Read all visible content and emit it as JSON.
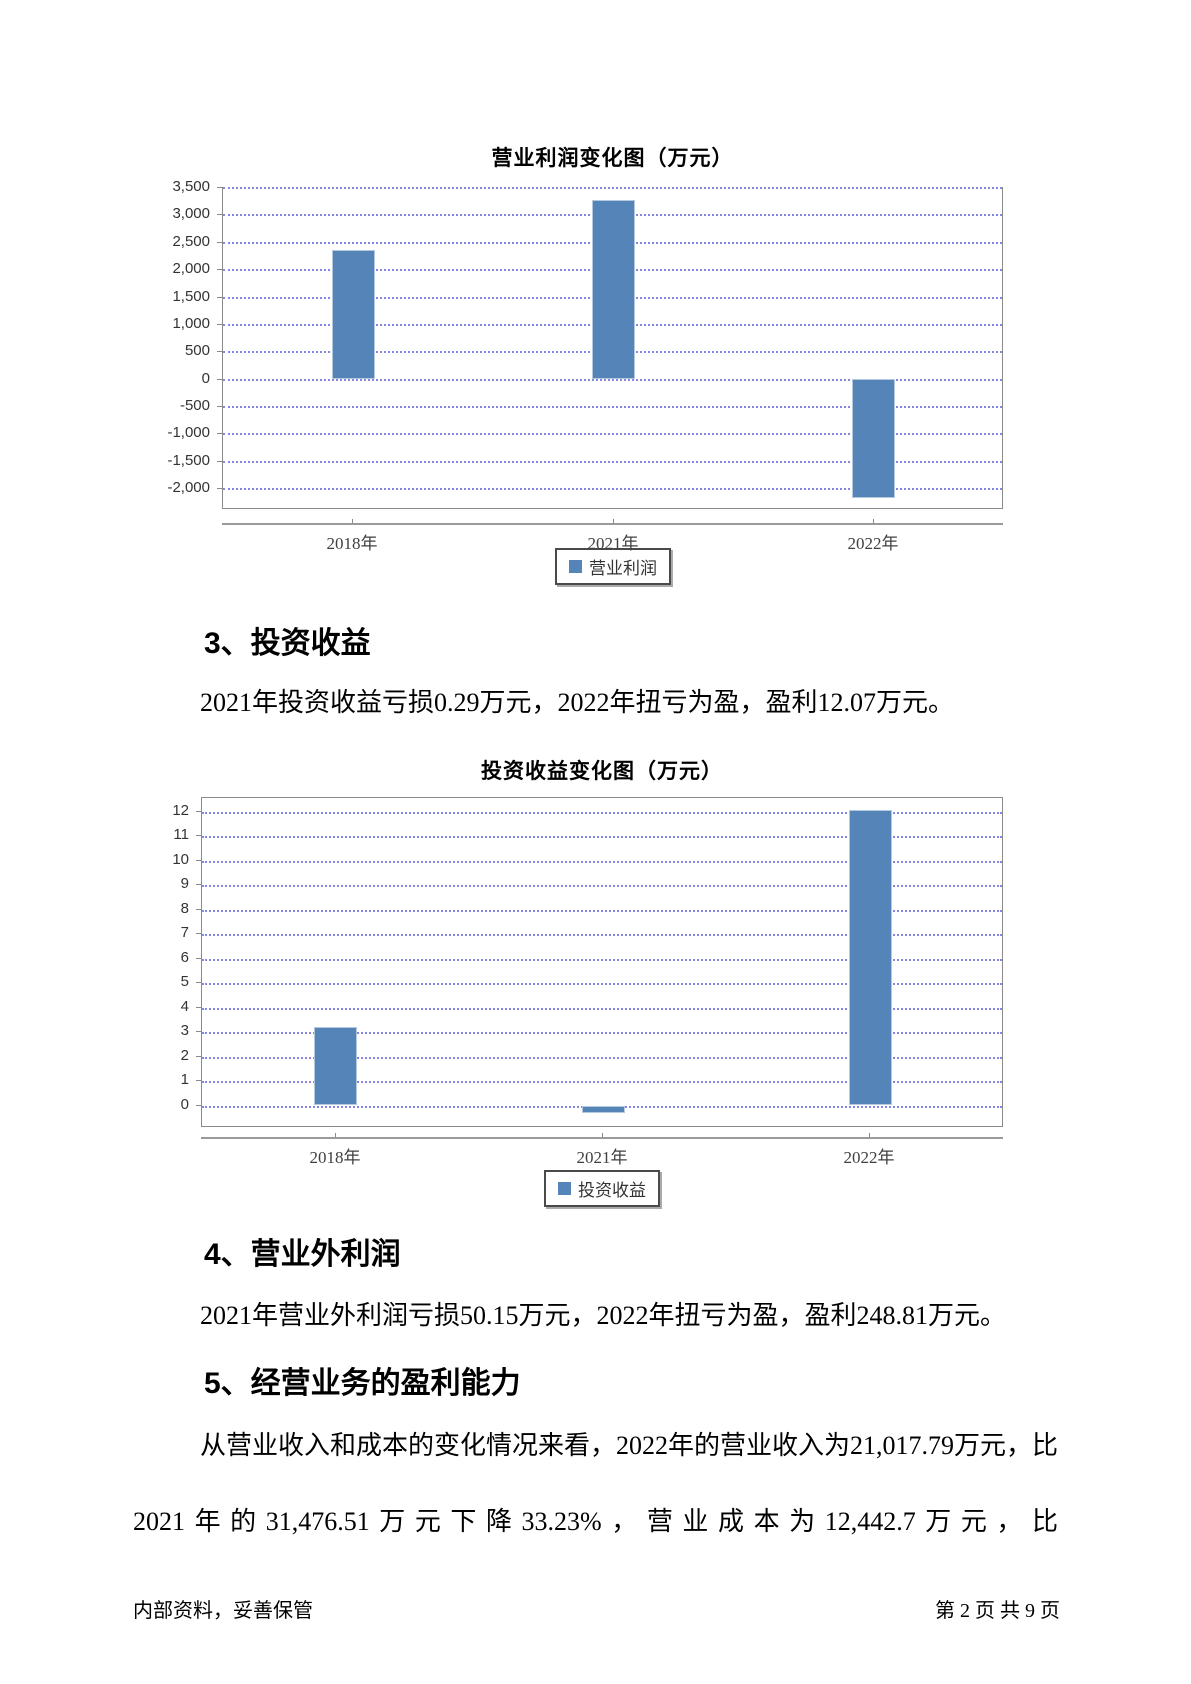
{
  "sections": [
    {
      "heading": "3、投资收益",
      "paragraph": "2021年投资收益亏损0.29万元，2022年扭亏为盈，盈利12.07万元。"
    },
    {
      "heading": "4、营业外利润",
      "paragraph": "2021年营业外利润亏损50.15万元，2022年扭亏为盈，盈利248.81万元。"
    },
    {
      "heading": "5、经营业务的盈利能力",
      "paragraph": "从营业收入和成本的变化情况来看，2022年的营业收入为21,017.79万元，比2021年的31,476.51万元下降33.23%，营业成本为12,442.7万元，比"
    }
  ],
  "footer": {
    "left": "内部资料，妥善保管",
    "right": "第 2 页  共 9 页"
  },
  "chart_data": [
    {
      "type": "bar",
      "title": "营业利润变化图（万元）",
      "legend": "营业利润",
      "legend_position": "bottom",
      "grid": "horizontal-dotted",
      "categories": [
        "2018年",
        "2021年",
        "2022年"
      ],
      "values": [
        2350,
        3260,
        -2180
      ],
      "ylim": [
        -2380,
        3500
      ],
      "yticks": [
        3500,
        3000,
        2500,
        2000,
        1500,
        1000,
        500,
        0,
        -500,
        -1000,
        -1500,
        -2000
      ],
      "ytick_labels": [
        "3,500",
        "3,000",
        "2,500",
        "2,000",
        "1,500",
        "1,000",
        "500",
        "0",
        "-500",
        "-1,000",
        "-1,500",
        "-2,000"
      ],
      "bar_color": "#5585b8",
      "bar_border_color": "#b5c9de",
      "gridline_color": "#8486e8"
    },
    {
      "type": "bar",
      "title": "投资收益变化图（万元）",
      "legend": "投资收益",
      "legend_position": "bottom",
      "grid": "horizontal-dotted",
      "categories": [
        "2018年",
        "2021年",
        "2022年"
      ],
      "values": [
        3.2,
        -0.29,
        12.07
      ],
      "ylim": [
        -0.91,
        12.57
      ],
      "yticks": [
        12,
        11,
        10,
        9,
        8,
        7,
        6,
        5,
        4,
        3,
        2,
        1,
        0
      ],
      "ytick_labels": [
        "12",
        "11",
        "10",
        "9",
        "8",
        "7",
        "6",
        "5",
        "4",
        "3",
        "2",
        "1",
        "0"
      ],
      "bar_color": "#5585b8",
      "bar_border_color": "#b5c9de",
      "gridline_color": "#8486e8"
    }
  ]
}
